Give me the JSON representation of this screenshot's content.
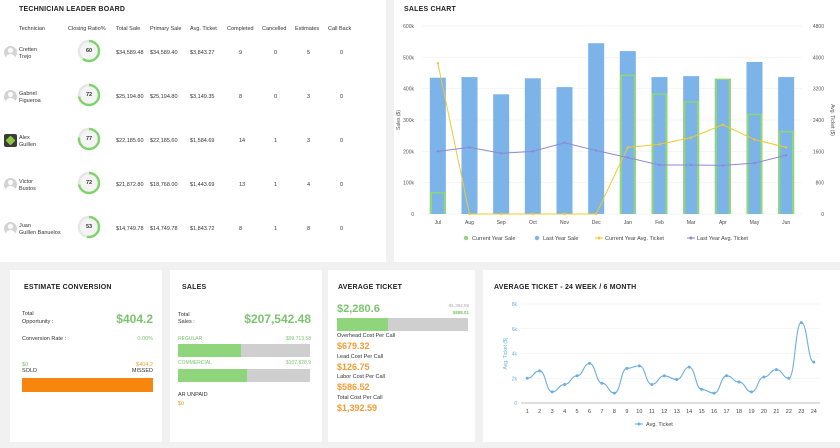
{
  "leaderboard": {
    "title": "TECHNICIAN LEADER BOARD",
    "headers": [
      "Technician",
      "Closing Ratio%",
      "Total Sale",
      "Primary Sale",
      "Avg. Ticket",
      "Completed",
      "Cancelled",
      "Estimates",
      "Call Back"
    ],
    "rows": [
      {
        "name1": "Cretten",
        "name2": "Trejo",
        "ratio": "60",
        "ratio_value": 60,
        "total": "$34,589.48",
        "primary": "$34,589.40",
        "avg": "$3,843.27",
        "completed": "9",
        "cancelled": "0",
        "estimates": "5",
        "callback": "0",
        "avatar": "user-icon"
      },
      {
        "name1": "Gabriel",
        "name2": "Figueroa",
        "ratio": "72",
        "ratio_value": 72,
        "total": "$25,194.80",
        "primary": "$25,194.80",
        "avg": "$3,149.35",
        "completed": "8",
        "cancelled": "0",
        "estimates": "3",
        "callback": "0",
        "avatar": "user-icon"
      },
      {
        "name1": "Alex",
        "name2": "Guillen",
        "ratio": "77",
        "ratio_value": 77,
        "total": "$22,185.60",
        "primary": "$22,185.60",
        "avg": "$1,584.69",
        "completed": "14",
        "cancelled": "1",
        "estimates": "3",
        "callback": "0",
        "avatar": "logo-icon"
      },
      {
        "name1": "Victor",
        "name2": "Bustos",
        "ratio": "72",
        "ratio_value": 72,
        "total": "$21,872.80",
        "primary": "$18,768.00",
        "avg": "$1,443.69",
        "completed": "13",
        "cancelled": "1",
        "estimates": "4",
        "callback": "0",
        "avatar": "user-icon"
      },
      {
        "name1": "Juan",
        "name2": "Guillen Banuelos",
        "ratio": "53",
        "ratio_value": 53,
        "total": "$14,749.78",
        "primary": "$14,749.78",
        "avg": "$1,843.72",
        "completed": "8",
        "cancelled": "1",
        "estimates": "8",
        "callback": "0",
        "avatar": "user-icon"
      }
    ]
  },
  "sales_chart": {
    "title": "SALES CHART",
    "chart_data": {
      "type": "bar",
      "categories": [
        "Jul",
        "Aug",
        "Sep",
        "Oct",
        "Nov",
        "Dec",
        "Jan",
        "Feb",
        "Mar",
        "Apr",
        "May",
        "Jun"
      ],
      "ylabel": "Sales ($)",
      "y2label": "Avg. Ticket ($)",
      "ylim": [
        0,
        600000
      ],
      "y2lim": [
        0,
        4800
      ],
      "yticks": [
        "0",
        "100k",
        "200k",
        "300k",
        "400k",
        "500k",
        "600k"
      ],
      "y2ticks": [
        "0",
        "800",
        "1600",
        "2400",
        "3200",
        "4000",
        "4800"
      ],
      "series": [
        {
          "name": "Current Year Sale",
          "kind": "bar",
          "color": "#8fd57b",
          "values": [
            70000,
            0,
            0,
            0,
            0,
            0,
            445000,
            385000,
            360000,
            432000,
            320000,
            265000
          ]
        },
        {
          "name": "Last Year Sale",
          "kind": "bar",
          "color": "#7cb3e8",
          "values": [
            435000,
            437000,
            382000,
            433000,
            405000,
            545000,
            520000,
            437000,
            440000,
            430000,
            485000,
            437000
          ]
        },
        {
          "name": "Current Year Avg. Ticket",
          "kind": "line",
          "axis": "right",
          "color": "#f0c930",
          "values": [
            3850,
            0,
            0,
            0,
            0,
            0,
            1700,
            1780,
            1950,
            2280,
            1900,
            1700
          ]
        },
        {
          "name": "Last Year Avg. Ticket",
          "kind": "line",
          "axis": "right",
          "color": "#8e87d6",
          "values": [
            1600,
            1700,
            1550,
            1600,
            1820,
            1620,
            1440,
            1250,
            1250,
            1240,
            1300,
            1500
          ]
        }
      ],
      "legend": "bottom"
    }
  },
  "estimate": {
    "title": "ESTIMATE CONVERSION",
    "total_label_1": "Total",
    "total_label_2": "Opportunity :",
    "total_value": "$404.2",
    "rate_label": "Conversion Rate :",
    "rate_value": "0.00%",
    "sold_value": "$0",
    "sold_label": "SOLD",
    "missed_value": "$404.2",
    "missed_label": "MISSED"
  },
  "sales": {
    "title": "SALES",
    "total_label_1": "Total",
    "total_label_2": "Sales :",
    "total_value": "$207,542.48",
    "regular_label": "REGULAR",
    "regular_value": "$99,713.58",
    "regular_fraction": 0.48,
    "commercial_label": "COMMERCIAL",
    "commercial_value": "$107,828.9",
    "commercial_fraction": 0.52,
    "ar_label": "AR UNPAID",
    "ar_value": "$0"
  },
  "avg_ticket": {
    "title": "AVERAGE TICKET",
    "value": "$2,280.6",
    "target_top": "-$1,392.59",
    "target_bottom": "$888.01",
    "fill_fraction": 0.39,
    "items": [
      {
        "label": "Overhead Cost Per Call",
        "value": "$679.32"
      },
      {
        "label": "Lead Cost Per Call",
        "value": "$126.75"
      },
      {
        "label": "Labor Cost Per Call",
        "value": "$586.52"
      },
      {
        "label": "Total Cost Per Call",
        "value": "$1,392.59"
      }
    ]
  },
  "avg_chart": {
    "title": "AVERAGE TICKET - 24 WEEK / 6 MONTH",
    "chart_data": {
      "type": "line",
      "x": [
        1,
        2,
        3,
        4,
        5,
        6,
        7,
        8,
        9,
        10,
        11,
        12,
        13,
        14,
        15,
        16,
        17,
        18,
        19,
        20,
        21,
        22,
        23,
        24
      ],
      "ylabel": "Avg. Ticket ($)",
      "ylim": [
        0,
        8000
      ],
      "yticks": [
        "0",
        "2k",
        "4k",
        "6k",
        "8k"
      ],
      "series": [
        {
          "name": "Avg. Ticket",
          "color": "#6aaee3",
          "values": [
            2000,
            2600,
            900,
            1500,
            2200,
            3200,
            1600,
            800,
            2800,
            3000,
            1500,
            2200,
            1900,
            2900,
            1100,
            800,
            2200,
            1700,
            900,
            2100,
            2700,
            2000,
            6500,
            3300
          ]
        }
      ],
      "legend": "bottom"
    }
  }
}
